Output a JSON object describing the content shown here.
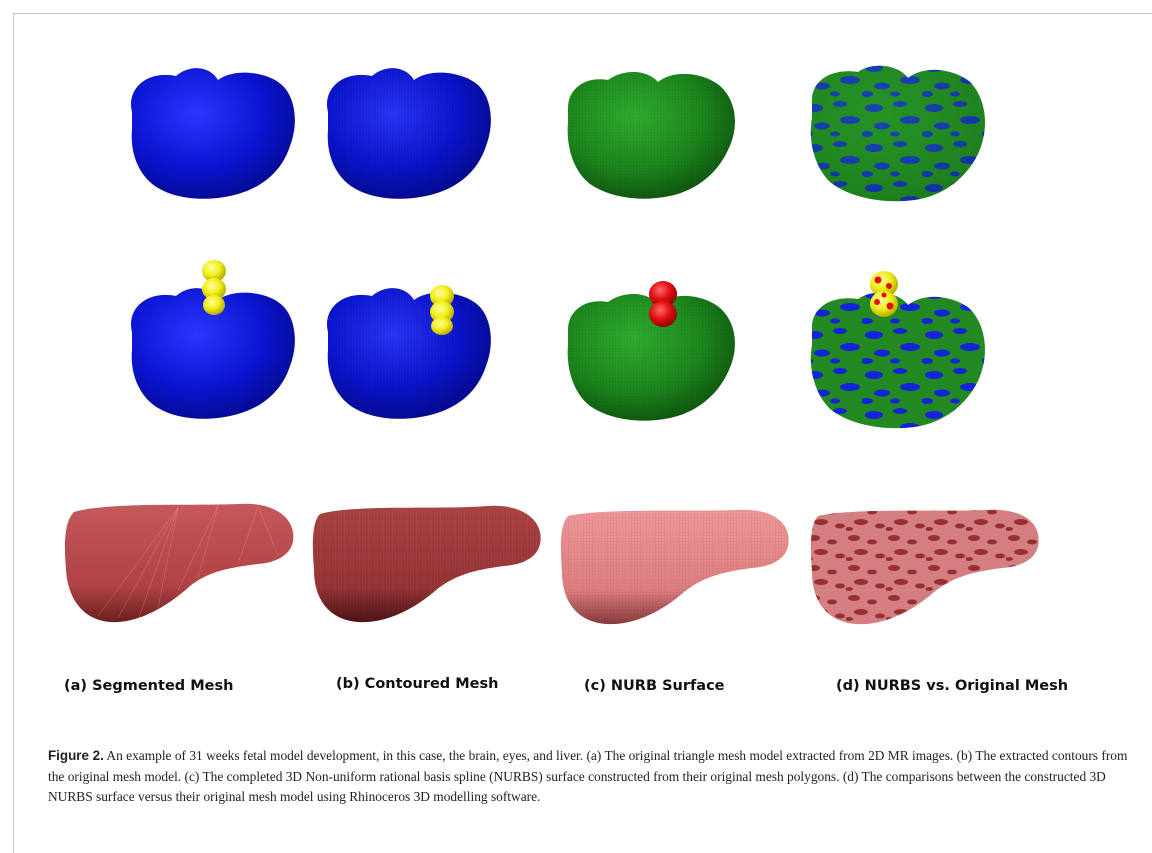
{
  "figure": {
    "number_label": "Figure 2.",
    "caption": " An example of 31 weeks fetal model development, in this case, the brain, eyes, and liver. (a) The original triangle mesh model extracted from 2D MR images. (b) The extracted contours from the original mesh model. (c) The completed 3D Non-uniform rational basis spline (NURBS) surface constructed from their original mesh polygons. (d) The comparisons between the constructed 3D NURBS surface versus their original mesh model using Rhinoceros 3D modelling software.",
    "column_labels": {
      "a": "(a) Segmented Mesh",
      "b": "(b) Contoured Mesh",
      "c": "(c)  NURB Surface",
      "d": "(d) NURBS vs. Original Mesh"
    }
  },
  "colors": {
    "brain_blue": "#0a14d8",
    "brain_green": "#1f8a1f",
    "eye_yellow": "#f3f020",
    "eye_red": "#e01010",
    "liver_dark": "#b8484a",
    "liver_light": "#e88486"
  }
}
